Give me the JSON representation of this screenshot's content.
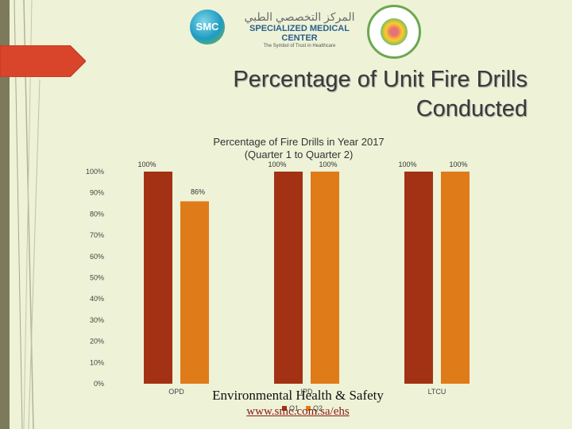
{
  "slide": {
    "title": "Percentage of Unit Fire Drills Conducted",
    "footer_line1": "Environmental Health & Safety",
    "footer_line2": "www.smc.com.sa/ehs"
  },
  "logo": {
    "initials": "SMC",
    "arabic_name": "المركز التخصصي الطبي",
    "english_name": "SPECIALIZED MEDICAL CENTER",
    "tagline": "The Symbol of Trust in Healthcare"
  },
  "colors": {
    "background": "#eef2d7",
    "q1": "#a33214",
    "q2": "#e07b1a",
    "accent_red": "#d9452b"
  },
  "chart_data": {
    "type": "bar",
    "title": "Percentage of Fire Drills in Year 2017 (Quarter 1 to Quarter 2)",
    "categories": [
      "OPD",
      "IPD",
      "LTCU"
    ],
    "series": [
      {
        "name": "Q1",
        "values": [
          100,
          100,
          100
        ]
      },
      {
        "name": "Q2",
        "values": [
          86,
          100,
          100
        ]
      }
    ],
    "ylim": [
      0,
      100
    ],
    "y_ticks": [
      "0%",
      "10%",
      "20%",
      "30%",
      "40%",
      "50%",
      "60%",
      "70%",
      "80%",
      "90%",
      "100%"
    ],
    "data_labels": [
      [
        "100%",
        "100%",
        "100%"
      ],
      [
        "86%",
        "100%",
        "100%"
      ]
    ],
    "legend": "bottom",
    "grid": false
  }
}
